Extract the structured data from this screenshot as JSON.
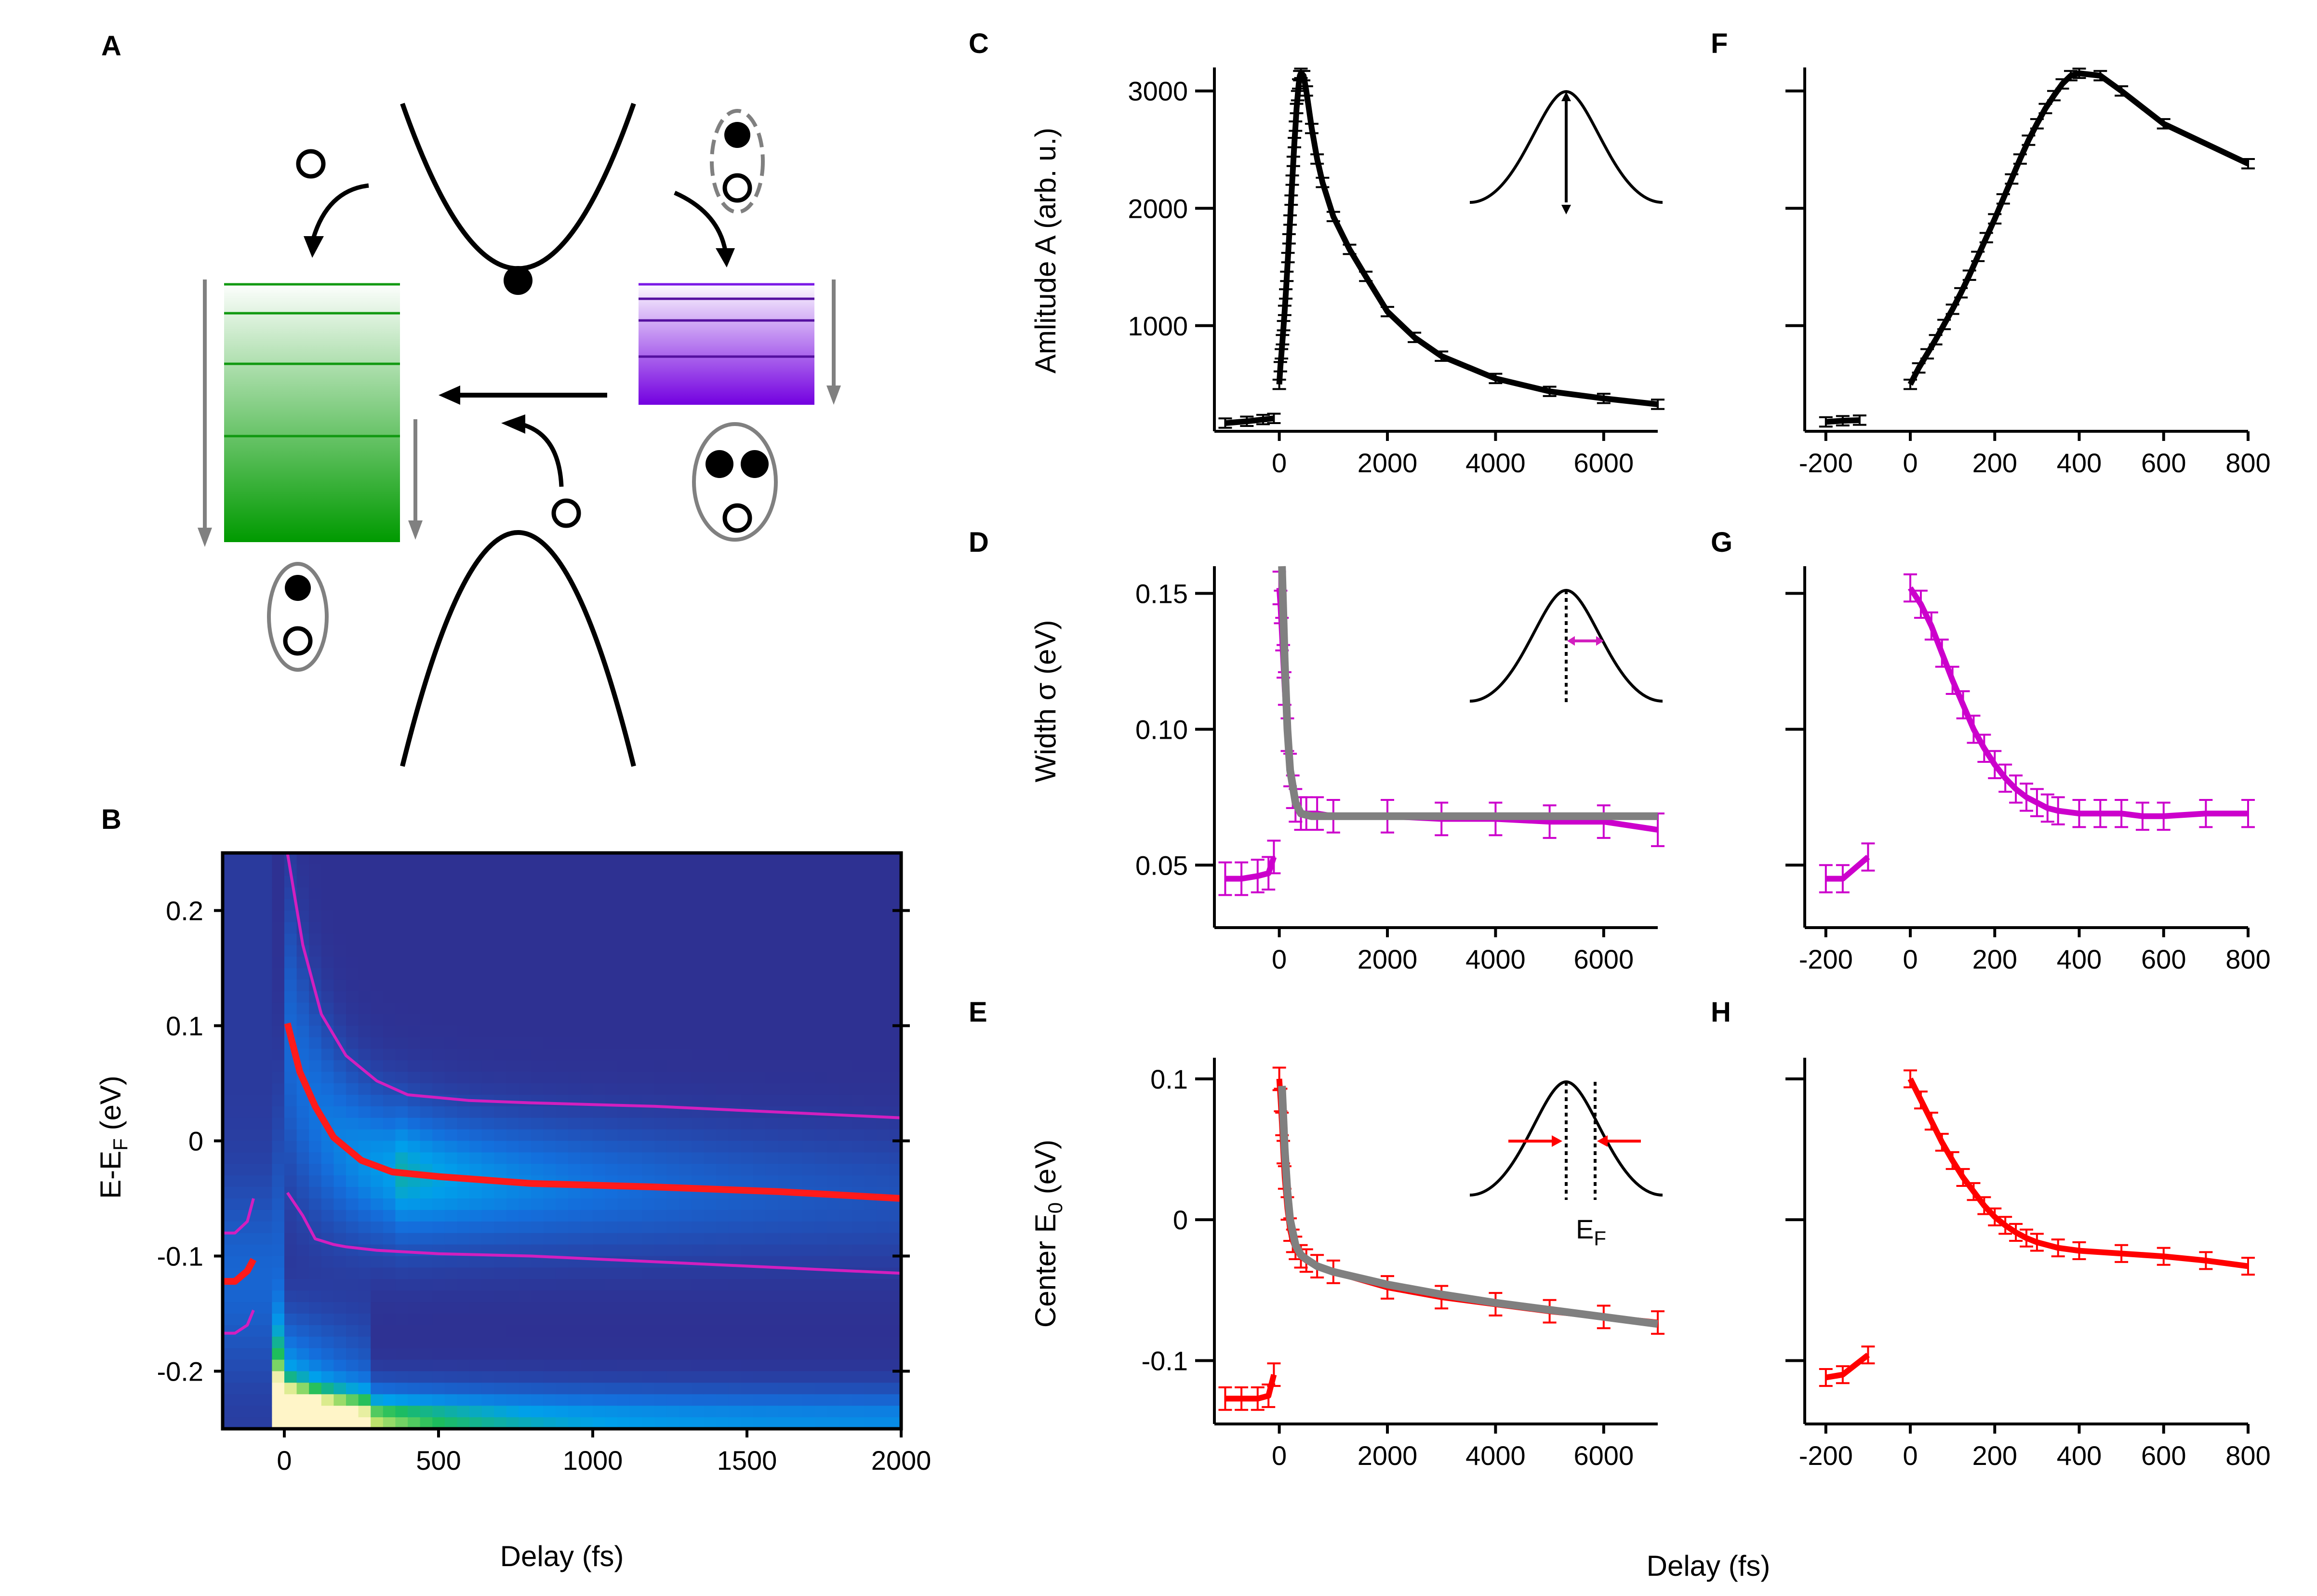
{
  "figure": {
    "panel_labels": [
      "A",
      "B",
      "C",
      "D",
      "E",
      "F",
      "G",
      "H"
    ],
    "xlabel_B": "Delay (fs)",
    "xlabel_right": "Delay (fs)"
  },
  "chart_data": [
    {
      "id": "A",
      "type": "diagram",
      "description_items": [
        "conduction band with electron",
        "valence band",
        "exciton levels (green)",
        "trion levels (purple)"
      ],
      "colors": {
        "green": "#1aa11a",
        "purple": "#7a18e6"
      }
    },
    {
      "id": "B",
      "type": "heatmap",
      "xlabel": "Delay (fs)",
      "ylabel": "E-E",
      "ylabel_sub": "F",
      "ylabel_unit": " (eV)",
      "xlim": [
        -200,
        2000
      ],
      "ylim": [
        -0.25,
        0.25
      ],
      "xticks": [
        0,
        500,
        1000,
        1500,
        2000
      ],
      "yticks": [
        0.2,
        0.1,
        0,
        -0.1,
        -0.2
      ],
      "yticklabels": [
        "0.2",
        "0.1",
        "0",
        "-0.1",
        "-0.2"
      ],
      "series": [
        {
          "name": "center",
          "color": "#ff1a1a",
          "x": [
            10,
            50,
            100,
            160,
            250,
            350,
            500,
            800,
            1200,
            1600,
            2000
          ],
          "y": [
            0.102,
            0.06,
            0.03,
            0.003,
            -0.017,
            -0.027,
            -0.031,
            -0.037,
            -0.04,
            -0.044,
            -0.05
          ]
        },
        {
          "name": "center-pre",
          "color": "#ff1a1a",
          "x": [
            -200,
            -160,
            -120,
            -100
          ],
          "y": [
            -0.122,
            -0.122,
            -0.113,
            -0.103
          ]
        },
        {
          "name": "upper",
          "color": "#d21fbf",
          "x": [
            10,
            60,
            120,
            200,
            300,
            400,
            600,
            800,
            1200,
            1600,
            2000
          ],
          "y": [
            0.25,
            0.17,
            0.11,
            0.074,
            0.052,
            0.04,
            0.035,
            0.033,
            0.03,
            0.025,
            0.02
          ]
        },
        {
          "name": "lower",
          "color": "#d21fbf",
          "x": [
            10,
            60,
            100,
            160,
            200,
            300,
            500,
            800,
            1200,
            1600,
            2000
          ],
          "y": [
            -0.045,
            -0.065,
            -0.085,
            -0.09,
            -0.092,
            -0.095,
            -0.098,
            -0.1,
            -0.105,
            -0.11,
            -0.115
          ]
        },
        {
          "name": "upper-pre",
          "color": "#d21fbf",
          "x": [
            -200,
            -160,
            -120,
            -100
          ],
          "y": [
            -0.08,
            -0.08,
            -0.07,
            -0.05
          ]
        },
        {
          "name": "lower-pre",
          "color": "#d21fbf",
          "x": [
            -200,
            -160,
            -120,
            -100
          ],
          "y": [
            -0.167,
            -0.167,
            -0.16,
            -0.147
          ]
        }
      ]
    },
    {
      "id": "C",
      "type": "line",
      "ylabel": "Amlitude A (arb. u.)",
      "xlim": [
        -1200,
        7000
      ],
      "ylim": [
        100,
        3200
      ],
      "xticks": [
        0,
        2000,
        4000,
        6000
      ],
      "yticks": [
        1000,
        2000,
        3000
      ],
      "series": [
        {
          "name": "pre",
          "color": "#000000",
          "x": [
            -1000,
            -600,
            -300,
            -100
          ],
          "y": [
            170,
            185,
            200,
            210
          ]
        },
        {
          "name": "data",
          "color": "#000000",
          "x": [
            0,
            20,
            40,
            60,
            80,
            100,
            120,
            140,
            160,
            180,
            200,
            220,
            240,
            260,
            280,
            300,
            320,
            340,
            360,
            380,
            400,
            450,
            500,
            600,
            700,
            800,
            1000,
            1300,
            1600,
            2000,
            2500,
            3000,
            4000,
            5000,
            6000,
            7000
          ],
          "y": [
            500,
            650,
            760,
            880,
            1000,
            1130,
            1270,
            1420,
            1580,
            1740,
            1900,
            2070,
            2240,
            2400,
            2560,
            2700,
            2850,
            2960,
            3060,
            3130,
            3150,
            3130,
            3000,
            2680,
            2420,
            2220,
            1930,
            1650,
            1420,
            1120,
            900,
            740,
            550,
            440,
            380,
            330
          ]
        }
      ]
    },
    {
      "id": "D",
      "type": "line",
      "ylabel": "Width σ (eV)",
      "xlim": [
        -1200,
        7000
      ],
      "ylim": [
        0.027,
        0.16
      ],
      "xticks": [
        0,
        2000,
        4000,
        6000
      ],
      "yticks": [
        0.05,
        0.1,
        0.15
      ],
      "yticklabels": [
        "0.05",
        "0.10",
        "0.15"
      ],
      "series": [
        {
          "name": "pre",
          "color": "#cc00cc",
          "x": [
            -1000,
            -700,
            -400,
            -200,
            -100
          ],
          "y": [
            0.045,
            0.045,
            0.046,
            0.047,
            0.053
          ]
        },
        {
          "name": "data",
          "color": "#cc00cc",
          "x": [
            0,
            25,
            50,
            75,
            100,
            150,
            200,
            250,
            300,
            400,
            500,
            700,
            1000,
            2000,
            3000,
            4000,
            5000,
            6000,
            7000
          ],
          "y": [
            0.152,
            0.145,
            0.135,
            0.125,
            0.115,
            0.098,
            0.085,
            0.077,
            0.072,
            0.069,
            0.069,
            0.069,
            0.068,
            0.068,
            0.067,
            0.067,
            0.066,
            0.066,
            0.063
          ]
        },
        {
          "name": "fit",
          "color": "#808080",
          "x": [
            50,
            100,
            150,
            200,
            300,
            400,
            600,
            1000,
            2000,
            3000,
            4000,
            5000,
            6000,
            7000
          ],
          "y": [
            0.16,
            0.125,
            0.1,
            0.085,
            0.073,
            0.069,
            0.068,
            0.068,
            0.068,
            0.068,
            0.068,
            0.068,
            0.068,
            0.068
          ]
        }
      ]
    },
    {
      "id": "E",
      "type": "line",
      "ylabel": "Center E",
      "ylabel_sub": "0",
      "ylabel_unit": " (eV)",
      "inset_label": "E",
      "inset_label_sub": "F",
      "xlim": [
        -1200,
        7000
      ],
      "ylim": [
        -0.145,
        0.115
      ],
      "xticks": [
        0,
        2000,
        4000,
        6000
      ],
      "yticks": [
        0.1,
        0,
        -0.1
      ],
      "yticklabels": [
        "0.1",
        "0",
        "-0.1"
      ],
      "series": [
        {
          "name": "pre",
          "color": "#ff0000",
          "x": [
            -1000,
            -700,
            -400,
            -200,
            -100
          ],
          "y": [
            -0.127,
            -0.127,
            -0.127,
            -0.125,
            -0.11
          ]
        },
        {
          "name": "data",
          "color": "#ff0000",
          "x": [
            0,
            25,
            50,
            75,
            100,
            150,
            200,
            250,
            300,
            400,
            500,
            700,
            1000,
            2000,
            3000,
            4000,
            5000,
            6000,
            7000
          ],
          "y": [
            0.1,
            0.085,
            0.068,
            0.048,
            0.03,
            0.008,
            -0.007,
            -0.015,
            -0.02,
            -0.026,
            -0.029,
            -0.033,
            -0.037,
            -0.048,
            -0.055,
            -0.06,
            -0.065,
            -0.069,
            -0.073
          ]
        },
        {
          "name": "fit",
          "color": "#808080",
          "x": [
            50,
            100,
            150,
            200,
            300,
            400,
            500,
            700,
            1000,
            2000,
            3000,
            4000,
            5000,
            6000,
            7000
          ],
          "y": [
            0.095,
            0.05,
            0.02,
            0.0,
            -0.018,
            -0.025,
            -0.028,
            -0.033,
            -0.037,
            -0.046,
            -0.053,
            -0.059,
            -0.064,
            -0.069,
            -0.074
          ]
        }
      ]
    },
    {
      "id": "F",
      "type": "line",
      "ylabel": "",
      "xlim": [
        -250,
        800
      ],
      "ylim": [
        100,
        3200
      ],
      "xticks": [
        -200,
        0,
        200,
        400,
        600,
        800
      ],
      "yticks": [
        1000,
        2000,
        3000
      ],
      "xticklabels": [
        "-200",
        "0",
        "200",
        "400",
        "600",
        "800"
      ],
      "yticklabels": [
        "",
        "",
        ""
      ],
      "series": [
        {
          "name": "pre",
          "color": "#000000",
          "x": [
            -200,
            -160,
            -120
          ],
          "y": [
            180,
            190,
            195
          ]
        },
        {
          "name": "data",
          "color": "#000000",
          "x": [
            0,
            20,
            40,
            60,
            80,
            100,
            120,
            140,
            160,
            180,
            200,
            220,
            240,
            260,
            280,
            300,
            320,
            340,
            360,
            380,
            400,
            450,
            500,
            600,
            800
          ],
          "y": [
            500,
            640,
            760,
            880,
            1010,
            1140,
            1280,
            1430,
            1590,
            1750,
            1910,
            2080,
            2250,
            2420,
            2580,
            2720,
            2850,
            2960,
            3060,
            3130,
            3150,
            3130,
            3000,
            2720,
            2380
          ]
        }
      ]
    },
    {
      "id": "G",
      "type": "line",
      "ylabel": "",
      "xlim": [
        -250,
        800
      ],
      "ylim": [
        0.027,
        0.16
      ],
      "xticks": [
        -200,
        0,
        200,
        400,
        600,
        800
      ],
      "yticks": [
        0.05,
        0.1,
        0.15
      ],
      "xticklabels": [
        "-200",
        "0",
        "200",
        "400",
        "600",
        "800"
      ],
      "yticklabels": [
        "",
        "",
        ""
      ],
      "series": [
        {
          "name": "pre",
          "color": "#cc00cc",
          "x": [
            -200,
            -160,
            -100
          ],
          "y": [
            0.045,
            0.045,
            0.053
          ]
        },
        {
          "name": "data",
          "color": "#cc00cc",
          "x": [
            0,
            25,
            50,
            75,
            100,
            125,
            150,
            175,
            200,
            225,
            250,
            275,
            300,
            325,
            350,
            400,
            450,
            500,
            550,
            600,
            700,
            800
          ],
          "y": [
            0.152,
            0.146,
            0.138,
            0.128,
            0.118,
            0.109,
            0.1,
            0.093,
            0.087,
            0.082,
            0.078,
            0.075,
            0.073,
            0.071,
            0.07,
            0.069,
            0.069,
            0.069,
            0.068,
            0.068,
            0.069,
            0.069
          ]
        }
      ]
    },
    {
      "id": "H",
      "type": "line",
      "ylabel": "",
      "xlim": [
        -250,
        800
      ],
      "ylim": [
        -0.145,
        0.115
      ],
      "xticks": [
        -200,
        0,
        200,
        400,
        600,
        800
      ],
      "yticks": [
        0.1,
        0,
        -0.1
      ],
      "xticklabels": [
        "-200",
        "0",
        "200",
        "400",
        "600",
        "800"
      ],
      "yticklabels": [
        "",
        "",
        ""
      ],
      "series": [
        {
          "name": "pre",
          "color": "#ff0000",
          "x": [
            -200,
            -160,
            -100
          ],
          "y": [
            -0.112,
            -0.11,
            -0.096
          ]
        },
        {
          "name": "data",
          "color": "#ff0000",
          "x": [
            0,
            25,
            50,
            75,
            100,
            125,
            150,
            175,
            200,
            225,
            250,
            275,
            300,
            350,
            400,
            500,
            600,
            700,
            800
          ],
          "y": [
            0.1,
            0.085,
            0.07,
            0.055,
            0.042,
            0.03,
            0.02,
            0.01,
            0.002,
            -0.004,
            -0.009,
            -0.013,
            -0.016,
            -0.02,
            -0.022,
            -0.024,
            -0.026,
            -0.029,
            -0.033
          ]
        }
      ]
    }
  ]
}
